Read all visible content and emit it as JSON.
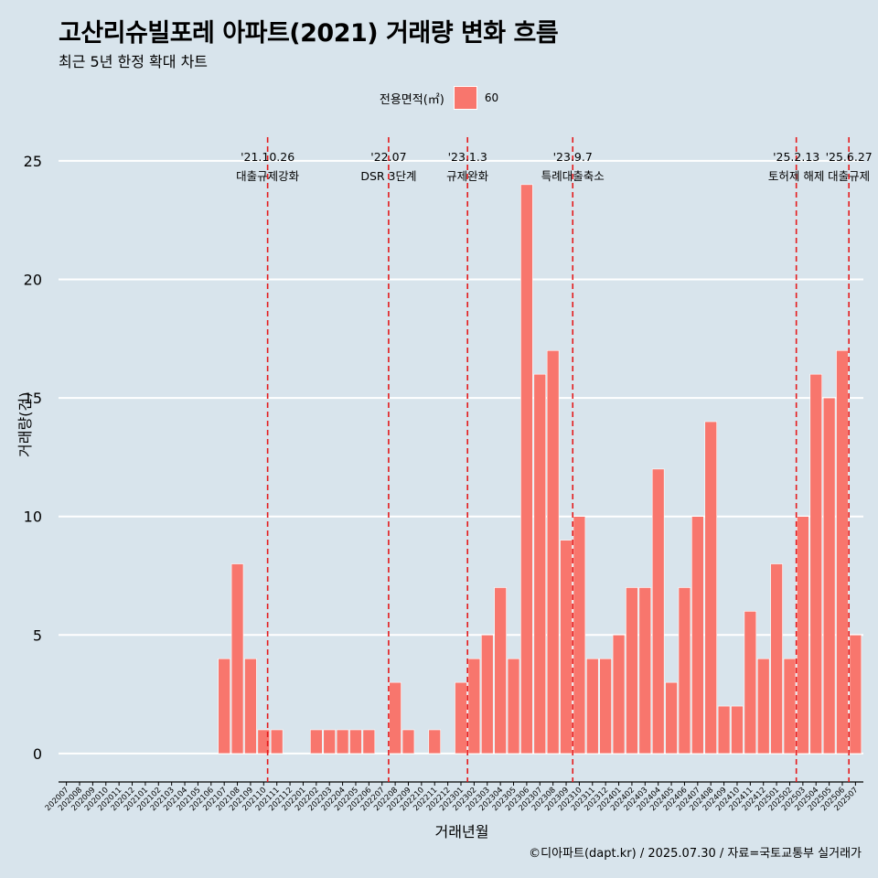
{
  "title": "고산리슈빌포레 아파트(2021) 거래량 변화 흐름",
  "subtitle": "최근 5년 한정 확대 차트",
  "legend": {
    "title": "전용면적(㎡)",
    "item": "60"
  },
  "caption": "©디아파트(dapt.kr) / 2025.07.30 / 자료=국토교통부 실거래가",
  "colors": {
    "bar": "#f8766d",
    "background": "#d8e4ec",
    "grid": "#ffffff",
    "vline": "#e41a1c"
  },
  "chart_data": {
    "type": "bar",
    "xlabel": "거래년월",
    "ylabel": "거래량(건)",
    "ylim": [
      -1.2,
      26
    ],
    "yticks": [
      0,
      5,
      10,
      15,
      20,
      25
    ],
    "categories": [
      "202007",
      "202008",
      "202009",
      "202010",
      "202011",
      "202012",
      "202101",
      "202102",
      "202103",
      "202104",
      "202105",
      "202106",
      "202107",
      "202108",
      "202109",
      "202110",
      "202111",
      "202112",
      "202201",
      "202202",
      "202203",
      "202204",
      "202205",
      "202206",
      "202207",
      "202208",
      "202209",
      "202210",
      "202211",
      "202212",
      "202301",
      "202302",
      "202303",
      "202304",
      "202305",
      "202306",
      "202307",
      "202308",
      "202309",
      "202310",
      "202311",
      "202312",
      "202401",
      "202402",
      "202403",
      "202404",
      "202405",
      "202406",
      "202407",
      "202408",
      "202409",
      "202410",
      "202411",
      "202412",
      "202501",
      "202502",
      "202503",
      "202504",
      "202505",
      "202506",
      "202507"
    ],
    "series": [
      {
        "name": "60",
        "values": [
          0,
          0,
          0,
          0,
          0,
          0,
          0,
          0,
          0,
          0,
          0,
          0,
          4,
          8,
          4,
          1,
          1,
          0,
          0,
          1,
          1,
          1,
          1,
          1,
          0,
          3,
          1,
          0,
          1,
          0,
          3,
          4,
          5,
          7,
          4,
          24,
          16,
          17,
          9,
          10,
          4,
          4,
          5,
          7,
          7,
          12,
          3,
          7,
          10,
          14,
          2,
          2,
          6,
          4,
          8,
          4,
          10,
          16,
          15,
          17,
          5
        ]
      }
    ],
    "events": [
      {
        "date": "'21.10.26",
        "label": "대출규제강화",
        "index": 15.3
      },
      {
        "date": "'22.07",
        "label": "DSR 3단계",
        "index": 24.5
      },
      {
        "date": "'23.1.3",
        "label": "규제완화",
        "index": 30.5
      },
      {
        "date": "'23.9.7",
        "label": "특례대출축소",
        "index": 38.5
      },
      {
        "date": "'25.2.13",
        "label": "토허제 해제",
        "index": 55.5
      },
      {
        "date": "'25.6.27",
        "label": "대출규제",
        "index": 59.5
      }
    ]
  }
}
